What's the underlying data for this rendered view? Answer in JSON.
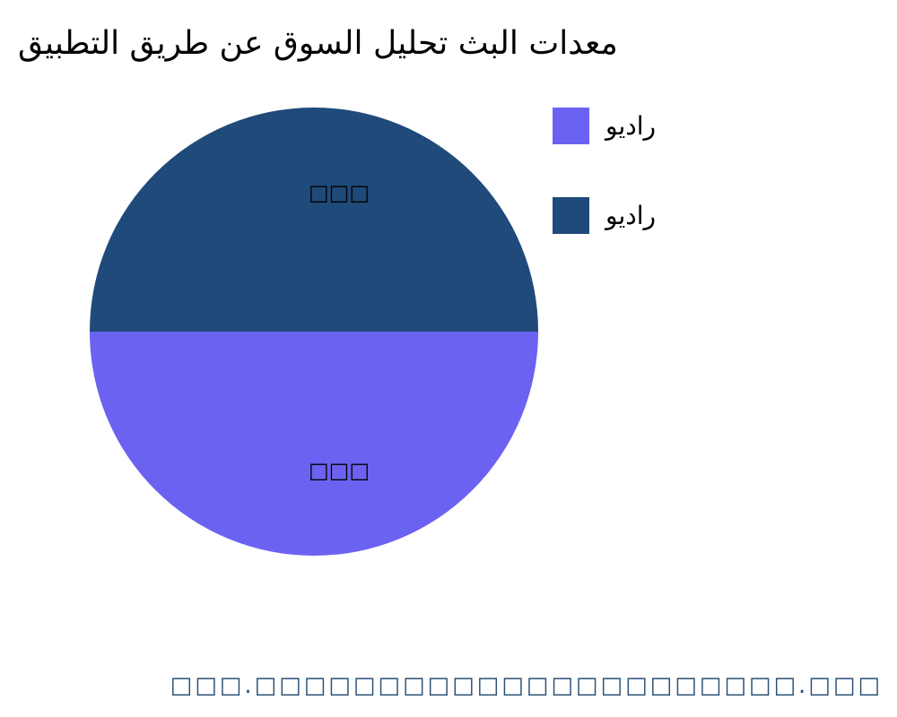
{
  "chart_data": {
    "type": "pie",
    "title": "معدات البث تحليل السوق عن طريق التطبيق",
    "slices": [
      {
        "label": "راديو",
        "value": 50,
        "data_label": "□□□",
        "color": "#6c62f2"
      },
      {
        "label": "راديو",
        "value": 50,
        "data_label": "□□□",
        "color": "#1f4a79"
      }
    ],
    "legend_position": "right"
  },
  "footer": "□□□.□□□□□□□□□□□□□□□□□□□□□□.□□□"
}
